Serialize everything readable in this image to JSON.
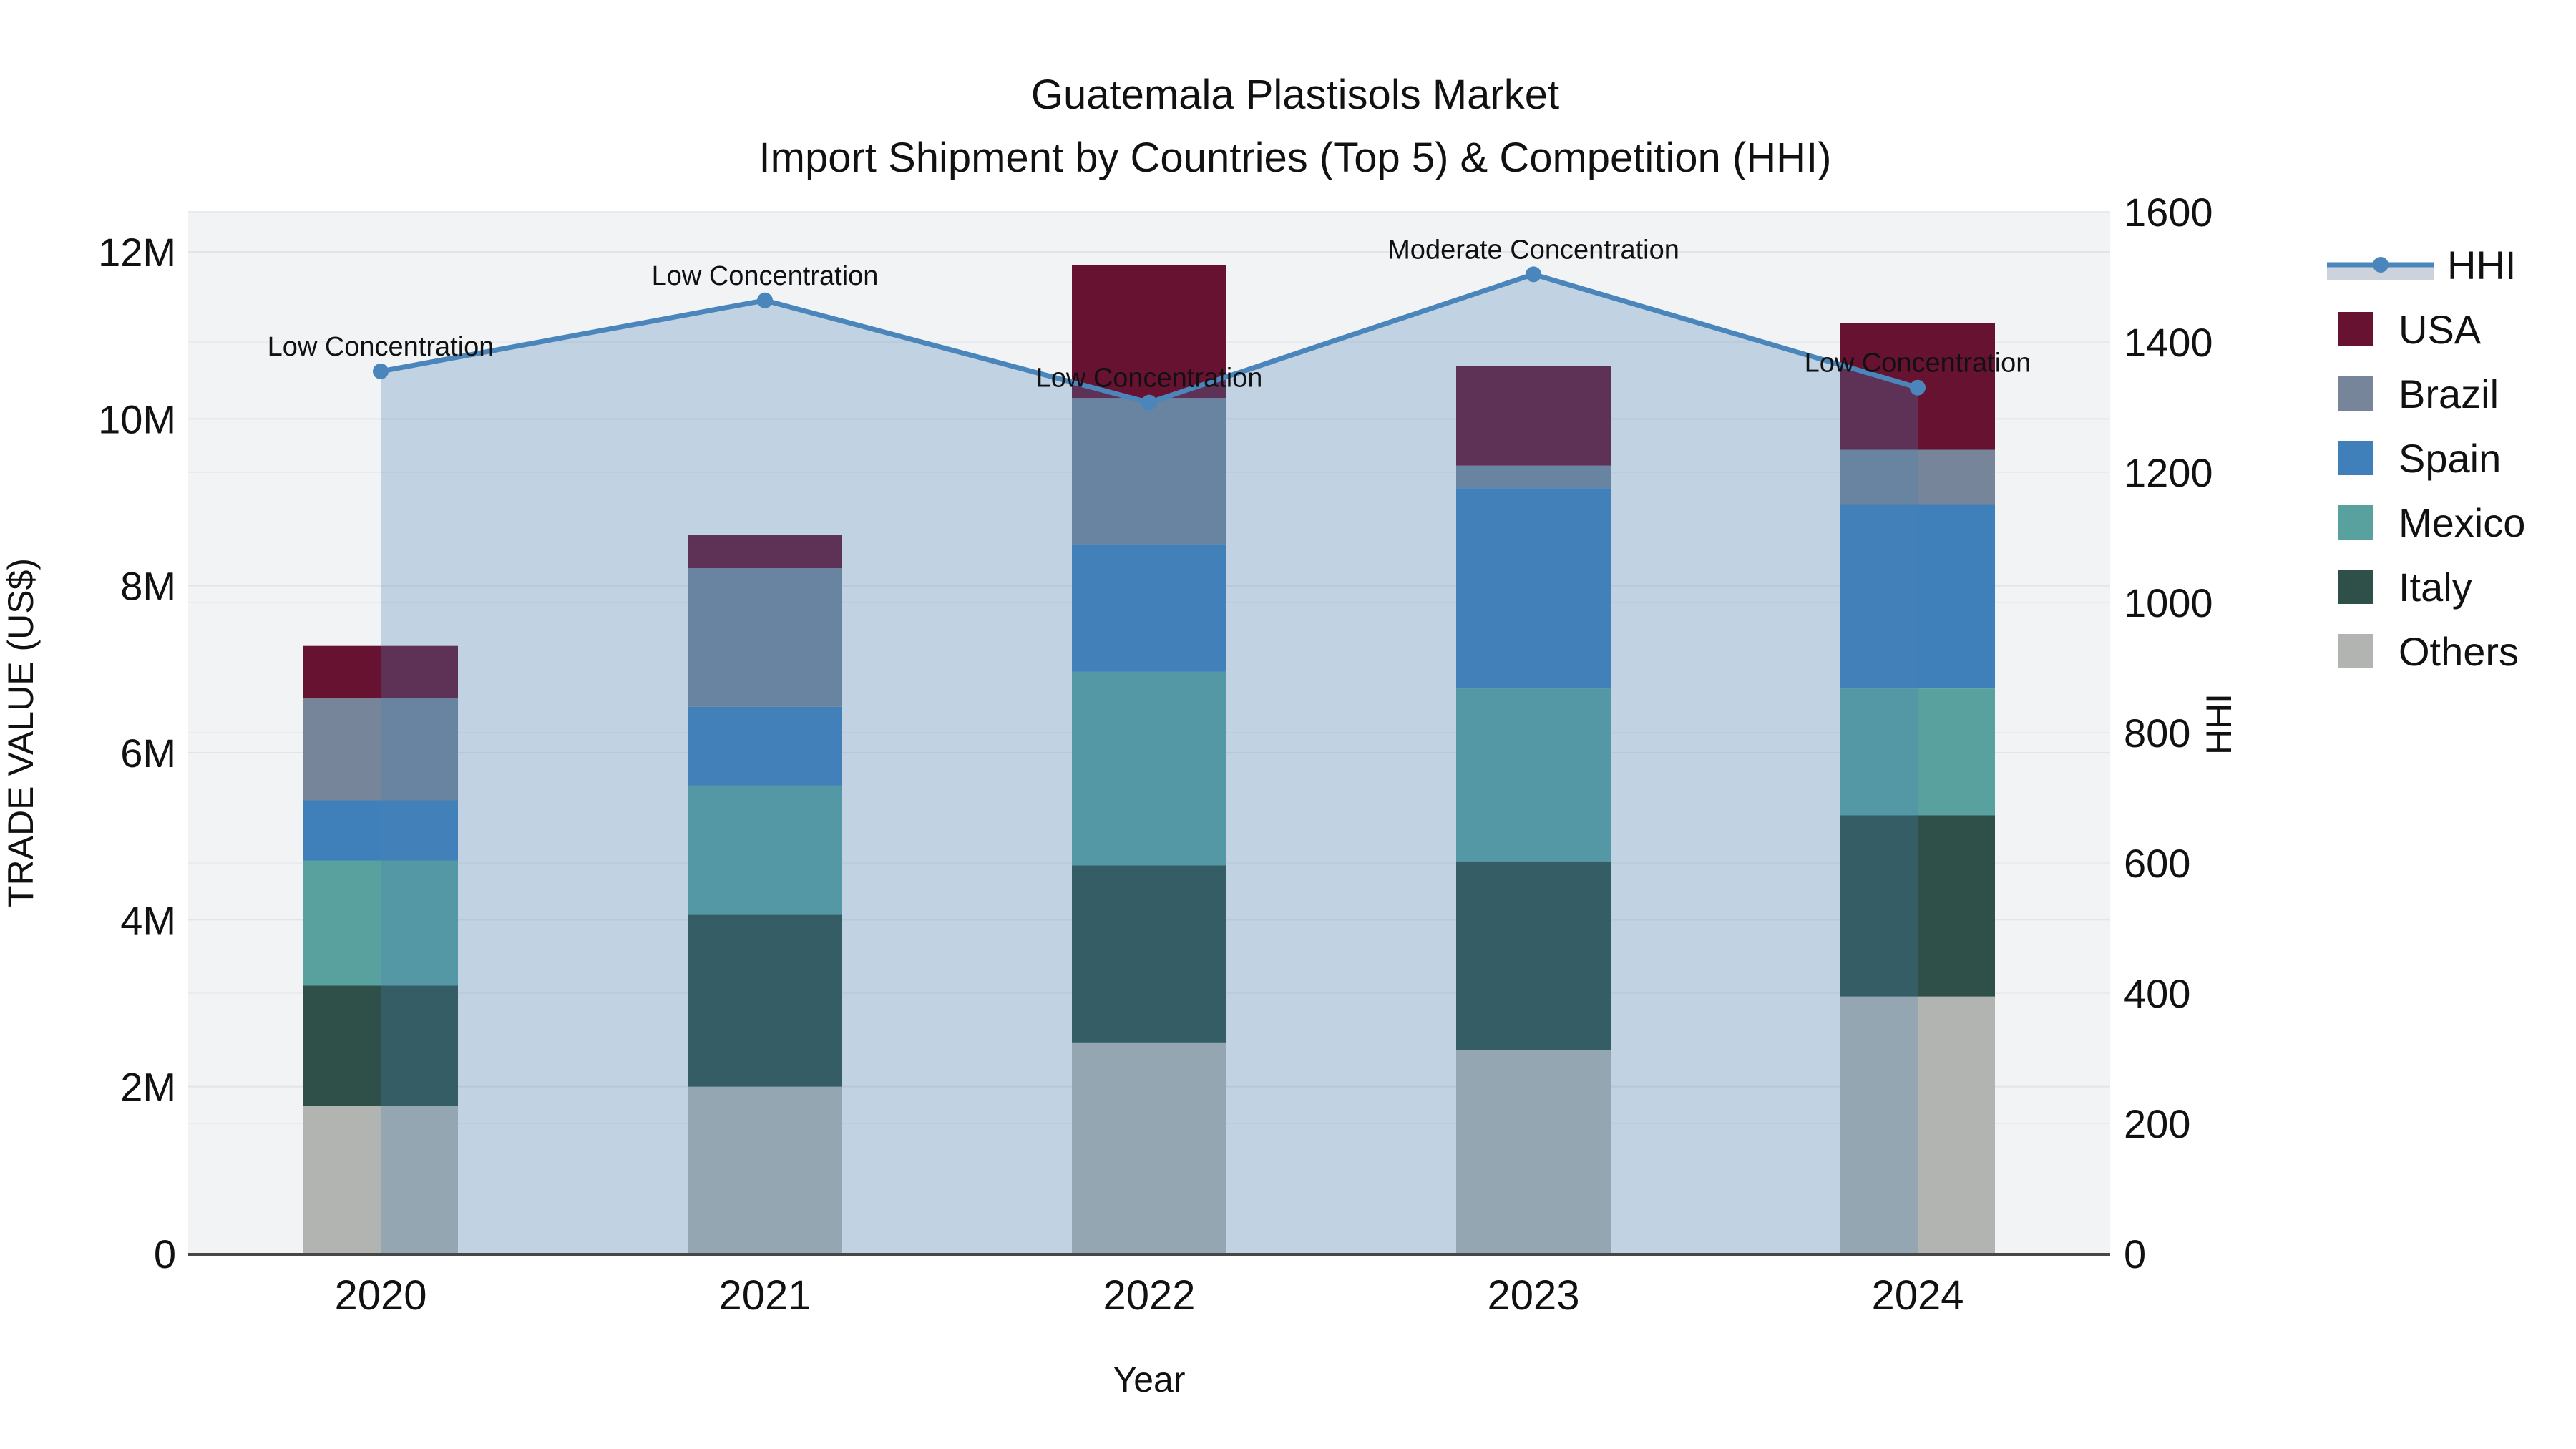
{
  "title": {
    "line1": "Guatemala Plastisols Market",
    "line2": "Import Shipment by Countries (Top 5) & Competition (HHI)"
  },
  "axes": {
    "x": {
      "label": "Year",
      "ticks": [
        "2020",
        "2021",
        "2022",
        "2023",
        "2024"
      ]
    },
    "y_left": {
      "label": "TRADE VALUE (US$)",
      "tick_labels": [
        "0",
        "2M",
        "4M",
        "6M",
        "8M",
        "10M",
        "12M"
      ],
      "tick_values_musd": [
        0,
        2,
        4,
        6,
        8,
        10,
        12
      ]
    },
    "y_right": {
      "label": "HHI",
      "tick_labels": [
        "0",
        "200",
        "400",
        "600",
        "800",
        "1000",
        "1200",
        "1400",
        "1600"
      ],
      "tick_values": [
        0,
        200,
        400,
        600,
        800,
        1000,
        1200,
        1400,
        1600
      ]
    }
  },
  "legend": {
    "items": [
      {
        "label": "HHI",
        "type": "line",
        "color": "#4a86bb",
        "band_color": "#ccd3dc"
      },
      {
        "label": "USA",
        "type": "square",
        "color": "#681232"
      },
      {
        "label": "Brazil",
        "type": "square",
        "color": "#76859a"
      },
      {
        "label": "Spain",
        "type": "square",
        "color": "#4080ba"
      },
      {
        "label": "Mexico",
        "type": "square",
        "color": "#59a19e"
      },
      {
        "label": "Italy",
        "type": "square",
        "color": "#2e5049"
      },
      {
        "label": "Others",
        "type": "square",
        "color": "#b2b4b1"
      }
    ]
  },
  "chart_data": {
    "type": "bar",
    "subtype": "stacked-bars-with-line-overlay",
    "title": "Guatemala Plastisols Market — Import Shipment by Countries (Top 5) & Competition (HHI)",
    "categories": [
      "2020",
      "2021",
      "2022",
      "2023",
      "2024"
    ],
    "unit": "US$ millions",
    "series": [
      {
        "name": "USA",
        "color": "#681232",
        "values_musd": [
          0.63,
          0.4,
          1.59,
          1.19,
          1.52
        ]
      },
      {
        "name": "Brazil",
        "color": "#76859a",
        "values_musd": [
          1.22,
          1.66,
          1.75,
          0.27,
          0.66
        ]
      },
      {
        "name": "Spain",
        "color": "#4080ba",
        "values_musd": [
          0.72,
          0.94,
          1.53,
          2.4,
          2.2
        ]
      },
      {
        "name": "Mexico",
        "color": "#59a19e",
        "values_musd": [
          1.5,
          1.55,
          2.32,
          2.07,
          1.52
        ]
      },
      {
        "name": "Italy",
        "color": "#2e5049",
        "values_musd": [
          1.44,
          2.06,
          2.12,
          2.26,
          2.17
        ]
      },
      {
        "name": "Others",
        "color": "#b2b4b1",
        "values_musd": [
          1.77,
          2.0,
          2.53,
          2.44,
          3.08
        ]
      }
    ],
    "stack_order_bottom_to_top": [
      "Others",
      "Italy",
      "Mexico",
      "Spain",
      "Brazil",
      "USA"
    ],
    "line_series": {
      "name": "HHI",
      "axis": "right",
      "color": "#4a86bb",
      "marker": "circle",
      "values": [
        1355,
        1464,
        1307,
        1504,
        1330
      ],
      "area_fill_color": "#4682b4",
      "area_fill_opacity": 0.28
    },
    "annotations": [
      {
        "x": "2020",
        "text": "Low Concentration"
      },
      {
        "x": "2021",
        "text": "Low Concentration"
      },
      {
        "x": "2022",
        "text": "Low Concentration"
      },
      {
        "x": "2023",
        "text": "Moderate Concentration"
      },
      {
        "x": "2024",
        "text": "Low Concentration"
      }
    ],
    "xlabel": "Year",
    "ylabel_left": "TRADE VALUE (US$)",
    "ylabel_right": "HHI",
    "ylim_left_musd": [
      0,
      12.48
    ],
    "ylim_right": [
      0,
      1600
    ],
    "grid": true,
    "legend_position": "outside-right-top"
  },
  "colors": {
    "plot_background": "#f2f3f4",
    "figure_background": "#ffffff",
    "gridline_major": "#e2e4e8",
    "gridline_minor": "#e9ebee",
    "axis_line": "#474747",
    "text": "#111111"
  }
}
